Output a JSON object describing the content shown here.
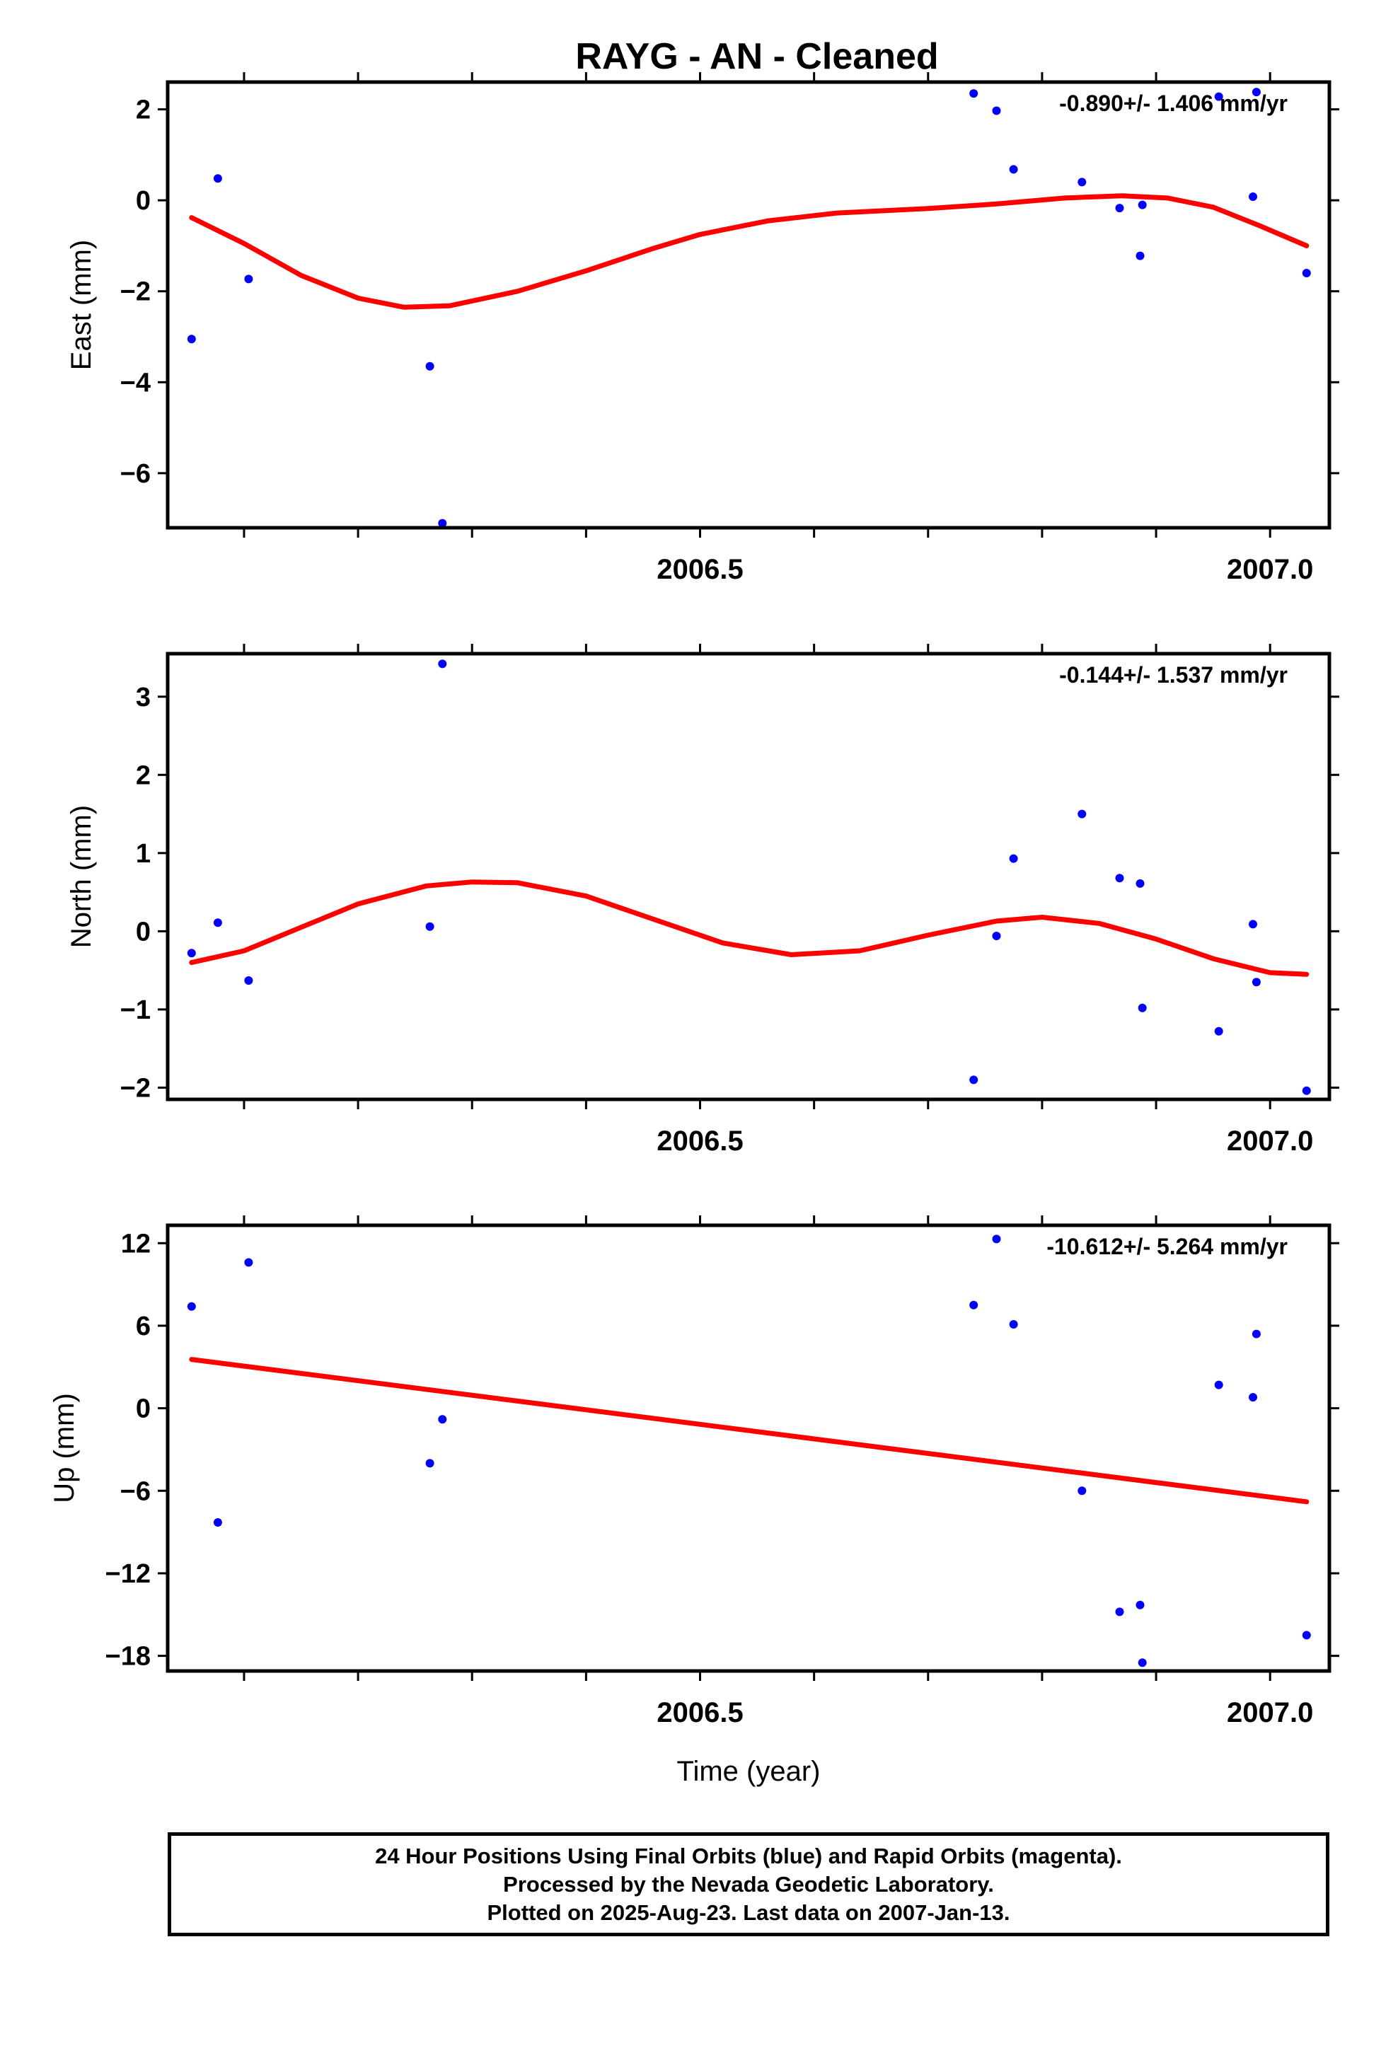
{
  "title": "RAYG  - AN - Cleaned",
  "footer": {
    "line1": "24 Hour Positions Using Final Orbits (blue) and Rapid Orbits (magenta).",
    "line2": "Processed by the Nevada Geodetic Laboratory.",
    "line3": "Plotted on 2025-Aug-23. Last data on 2007-Jan-13."
  },
  "colors": {
    "points": "#0000ff",
    "fit": "#ff0000",
    "axes": "#000000"
  },
  "chart_data": [
    {
      "type": "scatter",
      "ylabel": "East (mm)",
      "rate": "-0.890+/- 1.406 mm/yr",
      "xlim": [
        2006.033,
        2007.052
      ],
      "ylim": [
        -7.2,
        2.6
      ],
      "yticks": [
        2,
        0,
        -2,
        -4,
        -6
      ],
      "xticks": [
        2006.5,
        2007.0
      ],
      "xtick_labels": [
        "2006.5",
        "2007.0"
      ],
      "points": [
        [
          2006.054,
          -3.05
        ],
        [
          2006.077,
          0.48
        ],
        [
          2006.104,
          -1.73
        ],
        [
          2006.263,
          -3.65
        ],
        [
          2006.274,
          -7.1
        ],
        [
          2006.74,
          2.35
        ],
        [
          2006.76,
          1.97
        ],
        [
          2006.775,
          0.68
        ],
        [
          2006.835,
          0.4
        ],
        [
          2006.868,
          -0.17
        ],
        [
          2006.886,
          -1.22
        ],
        [
          2006.888,
          -0.1
        ],
        [
          2006.955,
          2.28
        ],
        [
          2006.985,
          0.08
        ],
        [
          2006.988,
          2.38
        ],
        [
          2007.032,
          -1.6
        ]
      ],
      "fit": [
        [
          2006.054,
          -0.38
        ],
        [
          2006.1,
          -0.95
        ],
        [
          2006.15,
          -1.65
        ],
        [
          2006.2,
          -2.15
        ],
        [
          2006.24,
          -2.35
        ],
        [
          2006.28,
          -2.32
        ],
        [
          2006.34,
          -2.0
        ],
        [
          2006.4,
          -1.55
        ],
        [
          2006.46,
          -1.05
        ],
        [
          2006.5,
          -0.75
        ],
        [
          2006.56,
          -0.45
        ],
        [
          2006.62,
          -0.28
        ],
        [
          2006.7,
          -0.18
        ],
        [
          2006.76,
          -0.08
        ],
        [
          2006.82,
          0.05
        ],
        [
          2006.87,
          0.1
        ],
        [
          2006.91,
          0.05
        ],
        [
          2006.95,
          -0.15
        ],
        [
          2006.99,
          -0.55
        ],
        [
          2007.032,
          -1.0
        ]
      ]
    },
    {
      "type": "scatter",
      "ylabel": "North (mm)",
      "rate": "-0.144+/- 1.537 mm/yr",
      "xlim": [
        2006.033,
        2007.052
      ],
      "ylim": [
        -2.15,
        3.55
      ],
      "yticks": [
        3,
        2,
        1,
        0,
        -1,
        -2
      ],
      "xticks": [
        2006.5,
        2007.0
      ],
      "xtick_labels": [
        "2006.5",
        "2007.0"
      ],
      "points": [
        [
          2006.054,
          -0.28
        ],
        [
          2006.077,
          0.11
        ],
        [
          2006.104,
          -0.63
        ],
        [
          2006.263,
          0.06
        ],
        [
          2006.274,
          3.42
        ],
        [
          2006.74,
          -1.9
        ],
        [
          2006.76,
          -0.06
        ],
        [
          2006.775,
          0.93
        ],
        [
          2006.835,
          1.5
        ],
        [
          2006.868,
          0.68
        ],
        [
          2006.886,
          0.61
        ],
        [
          2006.888,
          -0.98
        ],
        [
          2006.955,
          -1.28
        ],
        [
          2006.985,
          0.09
        ],
        [
          2006.988,
          -0.65
        ],
        [
          2007.032,
          -2.04
        ]
      ],
      "fit": [
        [
          2006.054,
          -0.4
        ],
        [
          2006.1,
          -0.25
        ],
        [
          2006.15,
          0.05
        ],
        [
          2006.2,
          0.35
        ],
        [
          2006.26,
          0.58
        ],
        [
          2006.3,
          0.63
        ],
        [
          2006.34,
          0.62
        ],
        [
          2006.4,
          0.45
        ],
        [
          2006.46,
          0.15
        ],
        [
          2006.52,
          -0.15
        ],
        [
          2006.58,
          -0.3
        ],
        [
          2006.64,
          -0.25
        ],
        [
          2006.7,
          -0.05
        ],
        [
          2006.76,
          0.13
        ],
        [
          2006.8,
          0.18
        ],
        [
          2006.85,
          0.1
        ],
        [
          2006.9,
          -0.1
        ],
        [
          2006.95,
          -0.35
        ],
        [
          2007.0,
          -0.53
        ],
        [
          2007.032,
          -0.55
        ]
      ]
    },
    {
      "type": "scatter",
      "ylabel": "Up (mm)",
      "rate": "-10.612+/- 5.264 mm/yr",
      "xlim": [
        2006.033,
        2007.052
      ],
      "ylim": [
        -19.1,
        13.3
      ],
      "yticks": [
        12,
        6,
        0,
        -6,
        -12,
        -18
      ],
      "xticks": [
        2006.5,
        2007.0
      ],
      "xtick_labels": [
        "2006.5",
        "2007.0"
      ],
      "xlabel": "Time (year)",
      "points": [
        [
          2006.054,
          7.4
        ],
        [
          2006.077,
          -8.3
        ],
        [
          2006.104,
          10.6
        ],
        [
          2006.263,
          -4.0
        ],
        [
          2006.274,
          -0.8
        ],
        [
          2006.74,
          7.5
        ],
        [
          2006.76,
          12.3
        ],
        [
          2006.775,
          6.1
        ],
        [
          2006.835,
          -6.0
        ],
        [
          2006.868,
          -14.8
        ],
        [
          2006.886,
          -14.3
        ],
        [
          2006.888,
          -18.5
        ],
        [
          2006.955,
          1.7
        ],
        [
          2006.985,
          0.8
        ],
        [
          2006.988,
          5.4
        ],
        [
          2007.032,
          -16.5
        ]
      ],
      "fit": [
        [
          2006.054,
          3.55
        ],
        [
          2007.032,
          -6.8
        ]
      ]
    }
  ]
}
